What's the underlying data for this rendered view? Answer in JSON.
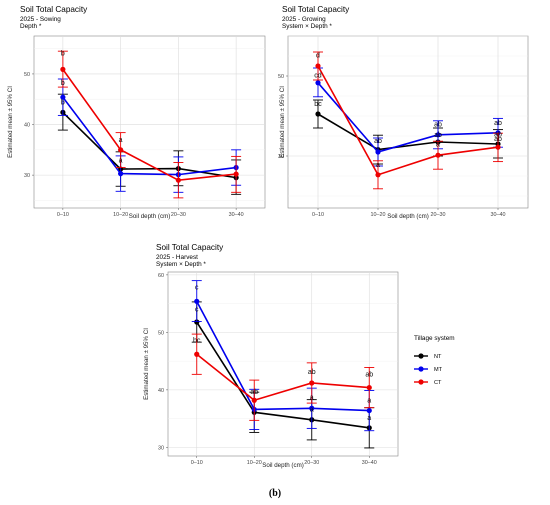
{
  "figure_label": "(b)",
  "legend": {
    "title": "Tillage system",
    "items": [
      {
        "name": "NT",
        "color": "#000000"
      },
      {
        "name": "MT",
        "color": "#0000ee"
      },
      {
        "name": "CT",
        "color": "#ee0000"
      }
    ]
  },
  "chart_data": [
    {
      "type": "line",
      "title": "Soil Total Capacity",
      "subtitle_lines": [
        "2025 - Sowing",
        " Depth *"
      ],
      "xlabel": "Soil depth (cm)",
      "ylabel": "Estimated mean ± 95% CI",
      "categories": [
        "0–10",
        "10–20",
        "20–30",
        "30–40"
      ],
      "ylim": [
        23.5,
        57.5
      ],
      "yticks": [
        30,
        40,
        50
      ],
      "grid": true,
      "series": [
        {
          "name": "NT",
          "color": "#000000",
          "values": [
            42.4,
            31.2,
            31.3,
            29.5
          ],
          "lower": [
            38.9,
            27.8,
            27.9,
            26.2
          ],
          "upper": [
            46.0,
            34.6,
            34.8,
            33.0
          ]
        },
        {
          "name": "MT",
          "color": "#0000ee",
          "values": [
            45.4,
            30.3,
            30.1,
            31.5
          ],
          "lower": [
            41.8,
            26.8,
            26.6,
            28.0
          ],
          "upper": [
            49.0,
            33.8,
            33.6,
            35.0
          ]
        },
        {
          "name": "CT",
          "color": "#ee0000",
          "values": [
            50.9,
            35.0,
            29.0,
            30.2
          ],
          "lower": [
            47.4,
            31.5,
            25.5,
            26.6
          ],
          "upper": [
            54.5,
            38.4,
            32.5,
            33.7
          ]
        }
      ],
      "labels": [
        {
          "text": "b",
          "x": 0,
          "y": 53.6
        },
        {
          "text": "b",
          "x": 0,
          "y": 47.8
        },
        {
          "text": "b",
          "x": 0,
          "y": 44.0
        },
        {
          "text": "a",
          "x": 1,
          "y": 36.5
        },
        {
          "text": "a",
          "x": 1,
          "y": 32.5
        }
      ]
    },
    {
      "type": "line",
      "title": "Soil Total Capacity",
      "subtitle_lines": [
        "2025 - Growing",
        " System × Depth *"
      ],
      "xlabel": "Soil depth (cm)",
      "ylabel": "Estimated mean ± 95% CI",
      "categories": [
        "0–10",
        "10–20",
        "20–30",
        "30–40"
      ],
      "ylim": [
        17,
        60
      ],
      "yticks": [
        30,
        50
      ],
      "grid": true,
      "series": [
        {
          "name": "NT",
          "color": "#000000",
          "values": [
            40.5,
            31.6,
            33.5,
            33.0
          ],
          "lower": [
            37.0,
            28.0,
            30.0,
            29.5
          ],
          "upper": [
            44.0,
            35.2,
            37.0,
            36.6
          ]
        },
        {
          "name": "MT",
          "color": "#0000ee",
          "values": [
            48.3,
            31.0,
            35.3,
            35.8
          ],
          "lower": [
            44.8,
            27.5,
            31.8,
            32.2
          ],
          "upper": [
            52.0,
            34.5,
            38.8,
            39.4
          ]
        },
        {
          "name": "CT",
          "color": "#ee0000",
          "values": [
            52.5,
            25.3,
            30.2,
            32.2
          ],
          "lower": [
            49.0,
            21.8,
            26.7,
            28.6
          ],
          "upper": [
            56.0,
            28.8,
            33.7,
            35.7
          ]
        }
      ],
      "labels": [
        {
          "text": "d",
          "x": 0,
          "y": 54.6
        },
        {
          "text": "cd",
          "x": 0,
          "y": 49.6
        },
        {
          "text": "bc",
          "x": 0,
          "y": 42.5
        },
        {
          "text": "ab",
          "x": 1,
          "y": 33.3
        },
        {
          "text": "a",
          "x": 1,
          "y": 27.3
        },
        {
          "text": "ab",
          "x": 2,
          "y": 37.4
        },
        {
          "text": "ab",
          "x": 2,
          "y": 34.7
        },
        {
          "text": "a",
          "x": 2,
          "y": 32.4
        },
        {
          "text": "ab",
          "x": 3,
          "y": 37.8
        },
        {
          "text": "ab",
          "x": 3,
          "y": 34.9
        },
        {
          "text": "ab",
          "x": 3,
          "y": 33.7
        }
      ]
    },
    {
      "type": "line",
      "title": "Soil Total Capacity",
      "subtitle_lines": [
        "2025 - Harvest",
        " System × Depth *"
      ],
      "xlabel": "Soil depth (cm)",
      "ylabel": "Estimated mean ± 95% CI",
      "categories": [
        "0–10",
        "10–20",
        "20–30",
        "30–40"
      ],
      "ylim": [
        28.5,
        60.5
      ],
      "yticks": [
        30,
        40,
        50,
        60
      ],
      "grid": true,
      "series": [
        {
          "name": "NT",
          "color": "#000000",
          "values": [
            51.8,
            36.1,
            34.8,
            33.4
          ],
          "lower": [
            48.3,
            32.6,
            31.3,
            29.9
          ],
          "upper": [
            55.3,
            39.6,
            38.3,
            36.9
          ]
        },
        {
          "name": "MT",
          "color": "#0000ee",
          "values": [
            55.4,
            36.6,
            36.8,
            36.4
          ],
          "lower": [
            51.9,
            33.1,
            33.3,
            32.9
          ],
          "upper": [
            59.0,
            40.1,
            40.3,
            39.9
          ]
        },
        {
          "name": "CT",
          "color": "#ee0000",
          "values": [
            46.2,
            38.2,
            41.2,
            40.4
          ],
          "lower": [
            42.7,
            34.7,
            37.7,
            36.9
          ],
          "upper": [
            49.7,
            41.7,
            44.7,
            43.9
          ]
        }
      ],
      "labels": [
        {
          "text": "c",
          "x": 0,
          "y": 57.5
        },
        {
          "text": "c",
          "x": 0,
          "y": 53.6
        },
        {
          "text": "bc",
          "x": 0,
          "y": 48.2
        },
        {
          "text": "ab",
          "x": 1,
          "y": 39.3
        },
        {
          "text": "ab",
          "x": 2,
          "y": 42.8
        },
        {
          "text": "a",
          "x": 2,
          "y": 38.3
        },
        {
          "text": "a",
          "x": 2,
          "y": 36.2
        },
        {
          "text": "ab",
          "x": 3,
          "y": 42.3
        },
        {
          "text": "a",
          "x": 3,
          "y": 37.8
        },
        {
          "text": "a",
          "x": 3,
          "y": 34.8
        }
      ]
    }
  ]
}
